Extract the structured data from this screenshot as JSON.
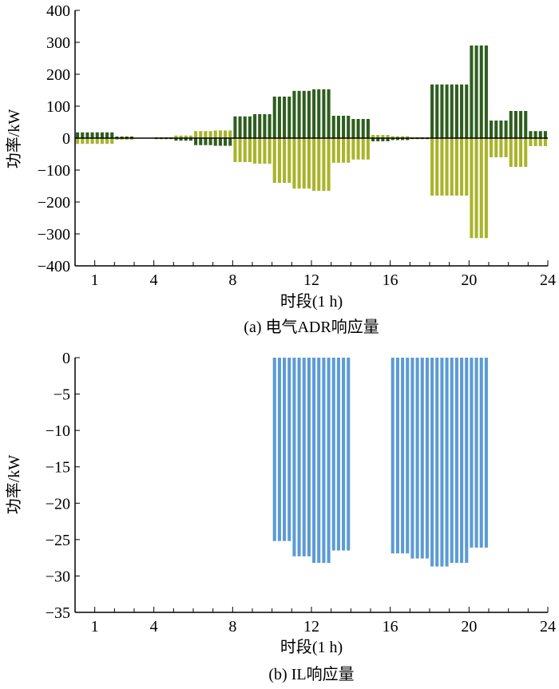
{
  "chart_data": [
    {
      "type": "bar",
      "caption": "(a) 电气ADR响应量",
      "xlabel": "时段(1 h)",
      "ylabel": "功率/kW",
      "xlim": [
        0,
        24
      ],
      "ylim": [
        -400,
        400
      ],
      "xticks": [
        1,
        4,
        8,
        12,
        16,
        20,
        24
      ],
      "yticks": [
        -400,
        -300,
        -200,
        -100,
        0,
        100,
        200,
        300,
        400
      ],
      "bars_per_hour": 4,
      "colors": {
        "series1": "#2e5e1e",
        "series2": "#a9b42a",
        "zero_line": "#000000"
      },
      "series": [
        {
          "values": [
            18,
            18,
            18,
            18,
            18,
            18,
            18,
            18,
            5,
            5,
            5,
            5,
            0,
            0,
            0,
            0,
            -3,
            -3,
            -3,
            -3,
            -8,
            -8,
            -8,
            -8,
            -22,
            -22,
            -22,
            -22,
            -24,
            -24,
            -24,
            -24,
            68,
            68,
            68,
            68,
            75,
            75,
            75,
            75,
            130,
            130,
            130,
            130,
            148,
            148,
            148,
            148,
            153,
            153,
            153,
            153,
            70,
            70,
            70,
            70,
            60,
            60,
            60,
            60,
            -10,
            -10,
            -10,
            -10,
            -6,
            -6,
            -6,
            -6,
            -3,
            -3,
            -3,
            -3,
            168,
            168,
            168,
            168,
            168,
            168,
            168,
            168,
            290,
            290,
            290,
            290,
            55,
            55,
            55,
            55,
            85,
            85,
            85,
            85,
            22,
            22,
            22,
            22
          ]
        },
        {
          "values": [
            -18,
            -18,
            -18,
            -18,
            -18,
            -18,
            -18,
            -18,
            -5,
            -5,
            -5,
            -5,
            0,
            0,
            0,
            0,
            3,
            3,
            3,
            3,
            8,
            8,
            8,
            8,
            22,
            22,
            22,
            22,
            24,
            24,
            24,
            24,
            -75,
            -75,
            -75,
            -75,
            -80,
            -80,
            -80,
            -80,
            -140,
            -140,
            -140,
            -140,
            -158,
            -158,
            -158,
            -158,
            -165,
            -165,
            -165,
            -165,
            -77,
            -77,
            -77,
            -77,
            -67,
            -67,
            -67,
            -67,
            10,
            10,
            10,
            10,
            6,
            6,
            6,
            6,
            3,
            3,
            3,
            3,
            -180,
            -180,
            -180,
            -180,
            -180,
            -180,
            -180,
            -180,
            -313,
            -313,
            -313,
            -313,
            -60,
            -60,
            -60,
            -60,
            -90,
            -90,
            -90,
            -90,
            -25,
            -25,
            -25,
            -25
          ]
        }
      ]
    },
    {
      "type": "bar",
      "caption": "(b) IL响应量",
      "xlabel": "时段(1 h)",
      "ylabel": "功率/kW",
      "xlim": [
        0,
        24
      ],
      "ylim": [
        -35,
        0
      ],
      "xticks": [
        1,
        4,
        8,
        12,
        16,
        20,
        24
      ],
      "yticks": [
        -35,
        -30,
        -25,
        -20,
        -15,
        -10,
        -5,
        0
      ],
      "bars_per_hour": 4,
      "colors": {
        "series1": "#5b9bd5"
      },
      "series": [
        {
          "values": [
            0,
            0,
            0,
            0,
            0,
            0,
            0,
            0,
            0,
            0,
            0,
            0,
            0,
            0,
            0,
            0,
            0,
            0,
            0,
            0,
            0,
            0,
            0,
            0,
            0,
            0,
            0,
            0,
            0,
            0,
            0,
            0,
            0,
            0,
            0,
            0,
            0,
            0,
            0,
            0,
            -25.2,
            -25.2,
            -25.2,
            -25.2,
            -27.3,
            -27.3,
            -27.3,
            -27.3,
            -28.2,
            -28.2,
            -28.2,
            -28.2,
            -26.5,
            -26.5,
            -26.5,
            -26.5,
            0,
            0,
            0,
            0,
            0,
            0,
            0,
            0,
            -26.9,
            -26.9,
            -26.9,
            -26.9,
            -27.6,
            -27.6,
            -27.6,
            -27.6,
            -28.7,
            -28.7,
            -28.7,
            -28.7,
            -28.2,
            -28.2,
            -28.2,
            -28.2,
            -26.1,
            -26.1,
            -26.1,
            -26.1,
            0,
            0,
            0,
            0,
            0,
            0,
            0,
            0,
            0,
            0,
            0,
            0
          ]
        }
      ]
    }
  ]
}
